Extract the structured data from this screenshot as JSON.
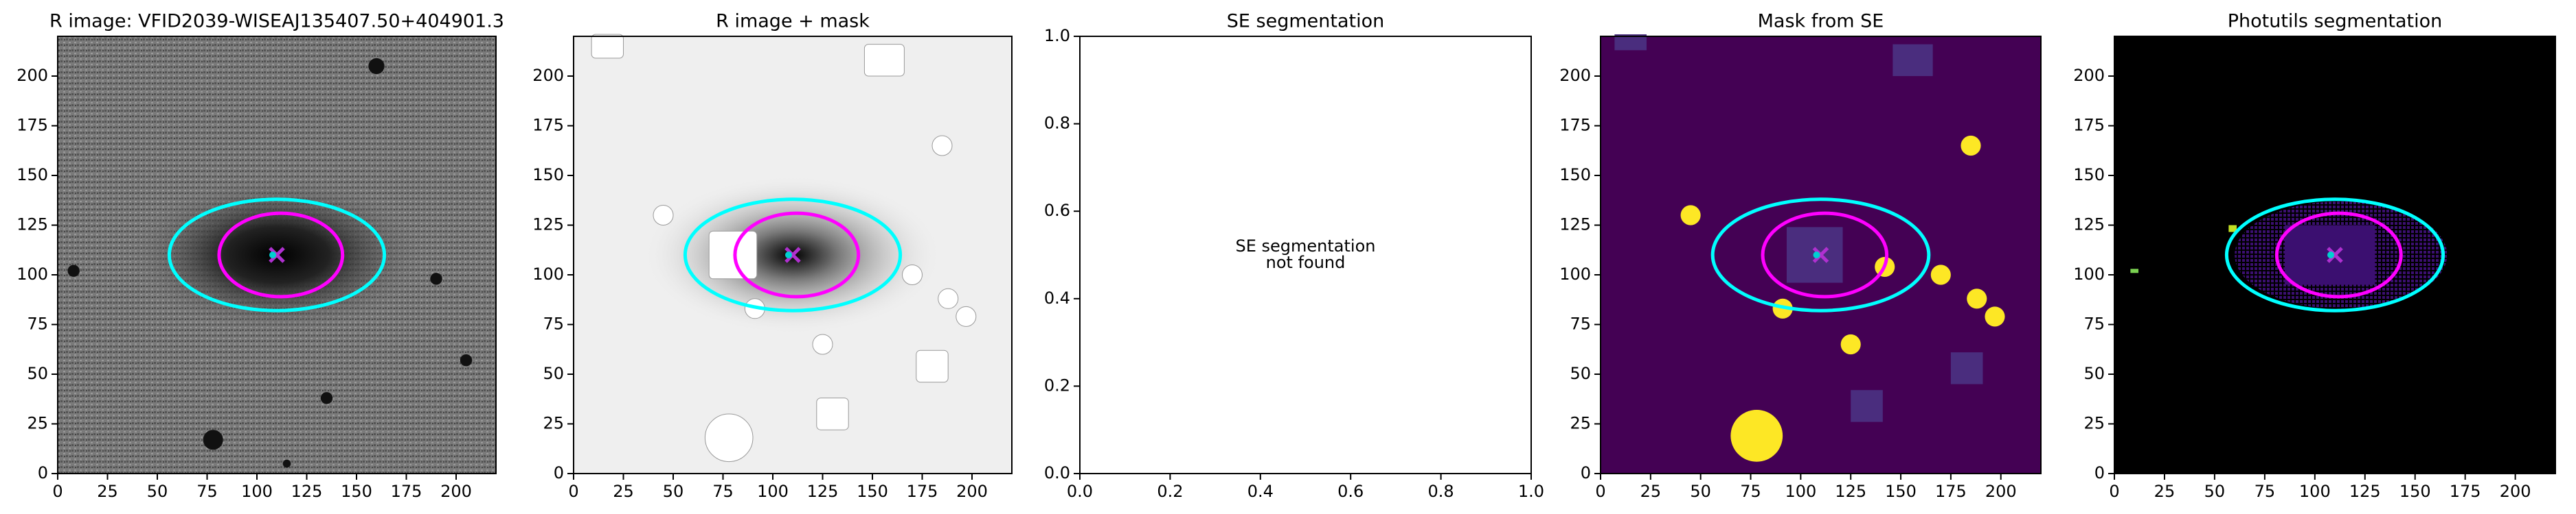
{
  "chart_data": [
    {
      "type": "image",
      "title": "R image: VFID2039-WISEAJ135407.50+404901.3",
      "background": "#777777",
      "xlim": [
        0,
        220
      ],
      "ylim": [
        0,
        220
      ],
      "xticks": [
        0,
        25,
        50,
        75,
        100,
        125,
        150,
        175,
        200
      ],
      "yticks": [
        0,
        25,
        50,
        75,
        100,
        125,
        150,
        175,
        200
      ],
      "ellipses": [
        {
          "color": "#00ffff",
          "center": [
            110,
            110
          ],
          "width": 108,
          "height": 56
        },
        {
          "color": "#ff00ff",
          "center": [
            112,
            110
          ],
          "width": 62,
          "height": 42
        }
      ]
    },
    {
      "type": "image",
      "title": "R image + mask",
      "background": "#efefef",
      "xlim": [
        0,
        220
      ],
      "ylim": [
        0,
        220
      ],
      "xticks": [
        0,
        25,
        50,
        75,
        100,
        125,
        150,
        175,
        200
      ],
      "yticks": [
        0,
        25,
        50,
        75,
        100,
        125,
        150,
        175,
        200
      ],
      "ellipses": [
        {
          "color": "#00ffff",
          "center": [
            110,
            110
          ],
          "width": 108,
          "height": 56
        },
        {
          "color": "#ff00ff",
          "center": [
            112,
            110
          ],
          "width": 62,
          "height": 42
        }
      ]
    },
    {
      "type": "empty",
      "title": "SE segmentation",
      "annotation": [
        "SE segmentation",
        "not found"
      ],
      "xlim": [
        0,
        1
      ],
      "ylim": [
        0,
        1
      ],
      "xticks": [
        {
          "value": 0,
          "label": "0.0"
        },
        {
          "value": 0.2,
          "label": "0.2"
        },
        {
          "value": 0.4,
          "label": "0.4"
        },
        {
          "value": 0.6,
          "label": "0.6"
        },
        {
          "value": 0.8,
          "label": "0.8"
        },
        {
          "value": 1,
          "label": "1.0"
        }
      ],
      "yticks": [
        {
          "value": 0,
          "label": "0.0"
        },
        {
          "value": 0.2,
          "label": "0.2"
        },
        {
          "value": 0.4,
          "label": "0.4"
        },
        {
          "value": 0.6,
          "label": "0.6"
        },
        {
          "value": 0.8,
          "label": "0.8"
        },
        {
          "value": 1,
          "label": "1.0"
        }
      ]
    },
    {
      "type": "image",
      "title": "Mask from SE",
      "background": "#440154",
      "xlim": [
        0,
        220
      ],
      "ylim": [
        0,
        220
      ],
      "xticks": [
        0,
        25,
        50,
        75,
        100,
        125,
        150,
        175,
        200
      ],
      "yticks": [
        0,
        25,
        50,
        75,
        100,
        125,
        150,
        175,
        200
      ],
      "ellipses": [
        {
          "color": "#00ffff",
          "center": [
            110,
            110
          ],
          "width": 108,
          "height": 56
        },
        {
          "color": "#ff00ff",
          "center": [
            112,
            110
          ],
          "width": 62,
          "height": 42
        }
      ]
    },
    {
      "type": "image",
      "title": "Photutils segmentation",
      "background": "#000000",
      "xlim": [
        0,
        220
      ],
      "ylim": [
        0,
        220
      ],
      "xticks": [
        0,
        25,
        50,
        75,
        100,
        125,
        150,
        175,
        200
      ],
      "yticks": [
        0,
        25,
        50,
        75,
        100,
        125,
        150,
        175,
        200
      ],
      "ellipses": [
        {
          "color": "#00ffff",
          "center": [
            110,
            110
          ],
          "width": 108,
          "height": 56
        },
        {
          "color": "#ff00ff",
          "center": [
            112,
            110
          ],
          "width": 62,
          "height": 42
        }
      ]
    }
  ]
}
